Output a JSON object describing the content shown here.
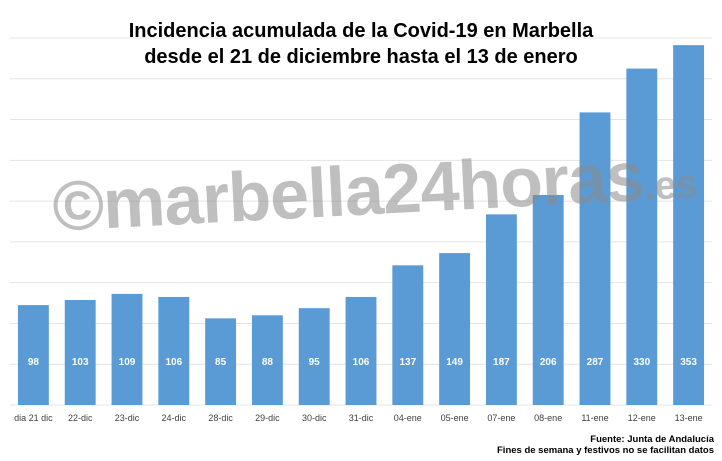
{
  "chart_data": {
    "type": "bar",
    "title_line1": "Incidencia acumulada de la Covid-19 en Marbella",
    "title_line2": "desde el 21 de diciembre hasta el 13 de enero",
    "categories": [
      "dia 21 dic",
      "22-dic",
      "23-dic",
      "24-dic",
      "28-dic",
      "29-dic",
      "30-dic",
      "31-dic",
      "04-ene",
      "05-ene",
      "07-ene",
      "08-ene",
      "11-ene",
      "12-ene",
      "13-ene"
    ],
    "values": [
      98,
      103,
      109,
      106,
      85,
      88,
      95,
      106,
      137,
      149,
      187,
      206,
      287,
      330,
      353
    ],
    "ylim": [
      0,
      360
    ],
    "grid": true,
    "bar_color": "#5b9bd5",
    "label_color": "#ffffff"
  },
  "watermark": {
    "text": "©marbella24horas",
    "suffix": ".es"
  },
  "source": {
    "line1": "Fuente: Junta de Andalucía",
    "line2": "Fines de semana y festivos no se facilitan datos"
  }
}
